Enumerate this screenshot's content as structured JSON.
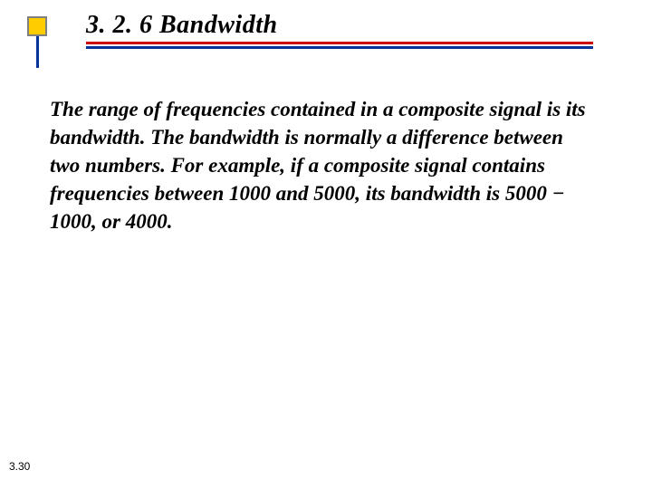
{
  "slide": {
    "title": "3. 2. 6  Bandwidth",
    "body": "The range of frequencies contained in a composite signal is its bandwidth. The bandwidth is normally a difference between two numbers. For example, if a composite signal contains frequencies between 1000 and 5000, its bandwidth is 5000 − 1000, or 4000.",
    "page_number": "3.30"
  },
  "styling": {
    "bullet_fill": "#ffcc00",
    "bullet_border": "#808080",
    "underline_red": "#cc0000",
    "underline_blue": "#003399",
    "vertical_line": "#003399",
    "background": "#ffffff",
    "text_color": "#000000",
    "title_fontsize": 28,
    "body_fontsize": 23,
    "pagenum_fontsize": 12
  }
}
